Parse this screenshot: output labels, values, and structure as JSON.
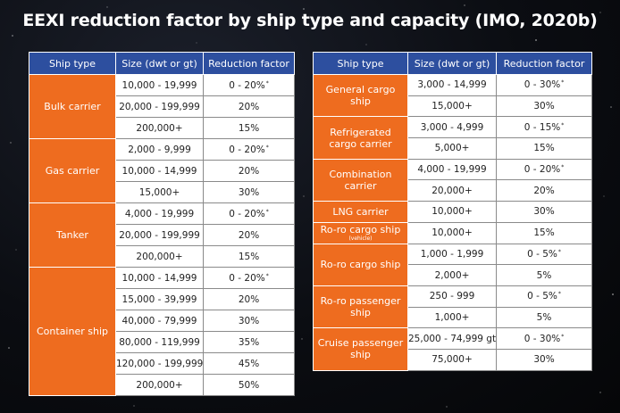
{
  "title": "EEXI reduction factor by ship type and capacity (IMO, 2020b)",
  "headers": {
    "ship_type": "Ship type",
    "size": "Size (dwt or gt)",
    "reduction": "Reduction factor"
  },
  "left_table": [
    {
      "type": "Bulk carrier",
      "rows": [
        {
          "size": "10,000 - 19,999",
          "factor": "0 - 20%",
          "note": "*"
        },
        {
          "size": "20,000 - 199,999",
          "factor": "20%",
          "note": ""
        },
        {
          "size": "200,000+",
          "factor": "15%",
          "note": ""
        }
      ]
    },
    {
      "type": "Gas carrier",
      "rows": [
        {
          "size": "2,000 - 9,999",
          "factor": "0 - 20%",
          "note": "*"
        },
        {
          "size": "10,000 - 14,999",
          "factor": "20%",
          "note": ""
        },
        {
          "size": "15,000+",
          "factor": "30%",
          "note": ""
        }
      ]
    },
    {
      "type": "Tanker",
      "rows": [
        {
          "size": "4,000 - 19,999",
          "factor": "0 - 20%",
          "note": "*"
        },
        {
          "size": "20,000 - 199,999",
          "factor": "20%",
          "note": ""
        },
        {
          "size": "200,000+",
          "factor": "15%",
          "note": ""
        }
      ]
    },
    {
      "type": "Container ship",
      "rows": [
        {
          "size": "10,000 - 14,999",
          "factor": "0 - 20%",
          "note": "*"
        },
        {
          "size": "15,000 - 39,999",
          "factor": "20%",
          "note": ""
        },
        {
          "size": "40,000 - 79,999",
          "factor": "30%",
          "note": ""
        },
        {
          "size": "80,000 - 119,999",
          "factor": "35%",
          "note": ""
        },
        {
          "size": "120,000 - 199,999",
          "factor": "45%",
          "note": ""
        },
        {
          "size": "200,000+",
          "factor": "50%",
          "note": ""
        }
      ]
    }
  ],
  "right_table": [
    {
      "type": "General cargo ship",
      "sub": "",
      "rows": [
        {
          "size": "3,000 - 14,999",
          "factor": "0 - 30%",
          "note": "*"
        },
        {
          "size": "15,000+",
          "factor": "30%",
          "note": ""
        }
      ]
    },
    {
      "type": "Refrigerated cargo carrier",
      "sub": "",
      "rows": [
        {
          "size": "3,000 - 4,999",
          "factor": "0 - 15%",
          "note": "*"
        },
        {
          "size": "5,000+",
          "factor": "15%",
          "note": ""
        }
      ]
    },
    {
      "type": "Combination carrier",
      "sub": "",
      "rows": [
        {
          "size": "4,000 - 19,999",
          "factor": "0 - 20%",
          "note": "*"
        },
        {
          "size": "20,000+",
          "factor": "20%",
          "note": ""
        }
      ]
    },
    {
      "type": "LNG carrier",
      "sub": "",
      "rows": [
        {
          "size": "10,000+",
          "factor": "30%",
          "note": ""
        }
      ]
    },
    {
      "type": "Ro-ro cargo ship",
      "sub": "(vehicle)",
      "rows": [
        {
          "size": "10,000+",
          "factor": "15%",
          "note": ""
        }
      ]
    },
    {
      "type": "Ro-ro cargo ship",
      "sub": "",
      "rows": [
        {
          "size": "1,000 - 1,999",
          "factor": "0 - 5%",
          "note": "*"
        },
        {
          "size": "2,000+",
          "factor": "5%",
          "note": ""
        }
      ]
    },
    {
      "type": "Ro-ro passenger ship",
      "sub": "",
      "rows": [
        {
          "size": "250 - 999",
          "factor": "0 - 5%",
          "note": "*"
        },
        {
          "size": "1,000+",
          "factor": "5%",
          "note": ""
        }
      ]
    },
    {
      "type": "Cruise passenger ship",
      "sub": "",
      "rows": [
        {
          "size": "25,000 - 74,999 gt",
          "factor": "0 - 30%",
          "note": "*"
        },
        {
          "size": "75,000+",
          "factor": "30%",
          "note": ""
        }
      ]
    }
  ],
  "colors": {
    "header_blue": "#2d4f9f",
    "type_orange": "#ee6c1f",
    "background": "#0b0d12"
  }
}
